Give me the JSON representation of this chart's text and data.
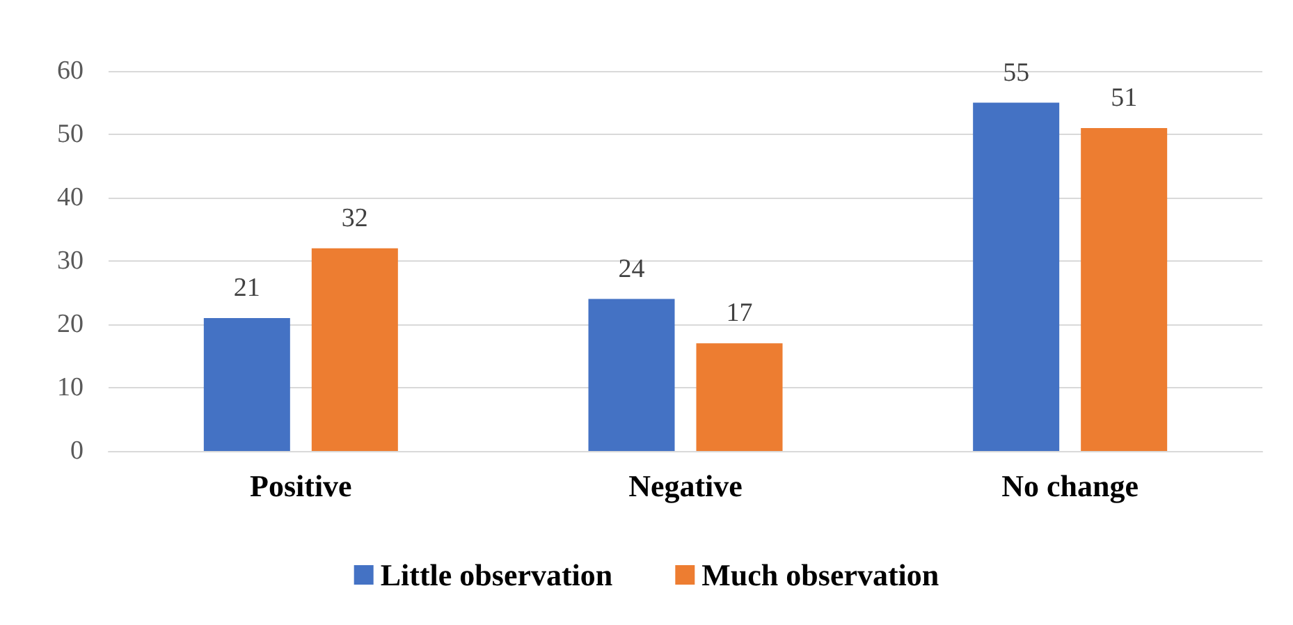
{
  "chart_data": {
    "type": "bar",
    "categories": [
      "Positive",
      "Negative",
      "No change"
    ],
    "series": [
      {
        "name": "Little observation",
        "color": "#4472c4",
        "values": [
          21,
          24,
          55
        ]
      },
      {
        "name": "Much observation",
        "color": "#ed7d31",
        "values": [
          32,
          17,
          51
        ]
      }
    ],
    "ylim": [
      0,
      60
    ],
    "yticks": [
      0,
      10,
      20,
      30,
      40,
      50,
      60
    ],
    "grid": "y",
    "legend": "bottom",
    "data_labels": true
  }
}
